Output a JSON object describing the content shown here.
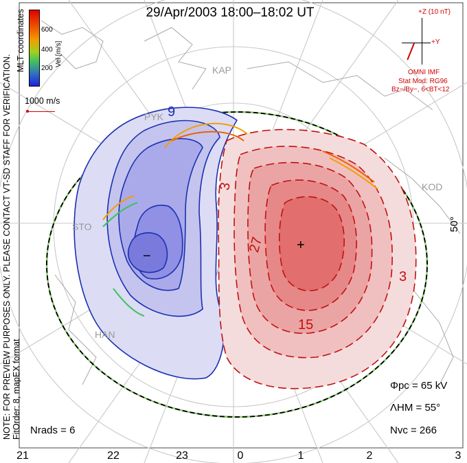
{
  "title": "29/Apr/2003 18:00–18:02 UT",
  "side_text": {
    "verification": "NOTE: FOR PREVIEW PURPOSES ONLY. PLEASE CONTACT VT-SD STAFF FOR VERIFICATION.",
    "fit_order": "FitOrder: 8, mapEX format",
    "mlt_coords": "MLT coordinates"
  },
  "colorbar": {
    "title": "Vel [m/s]",
    "ticks": [
      "600",
      "400",
      "200"
    ],
    "colors": [
      "#e00000",
      "#f06000",
      "#f0a000",
      "#a0d020",
      "#40c060",
      "#3070c0",
      "#2020e0"
    ]
  },
  "scale": {
    "label": "1000 m/s"
  },
  "imf": {
    "z_label": "+Z (10 nT)",
    "y_label": "+Y",
    "source": "OMNI IMF",
    "model": "Stat Mod: RG96",
    "condition": "Bz−/By−, 6<BT<12"
  },
  "mlt_ticks": [
    "21",
    "22",
    "23",
    "0",
    "1",
    "2",
    "3"
  ],
  "latitude_label": "50°",
  "stations": [
    "KAP",
    "KOD",
    "STO",
    "HAN",
    "PYK"
  ],
  "contour_labels": {
    "neg": "9",
    "neg_min": "−",
    "pos_3a": "3",
    "pos_3b": "3",
    "pos_27": "27",
    "pos_15": "15",
    "pos_max": "+"
  },
  "stats": {
    "phi_pc": "Φpc = 65 kV",
    "lambda_hm": "ΛHM = 55°",
    "n_vc": "Nvc = 266",
    "n_rads": "Nrads = 6"
  },
  "colors": {
    "negative_fill": "#8080e0",
    "negative_line": "#1a2fb0",
    "positive_fill": "#e05050",
    "positive_line": "#c01010",
    "boundary": "#000000",
    "boundary_dash": "#7ed957",
    "imf": "#d00000"
  }
}
